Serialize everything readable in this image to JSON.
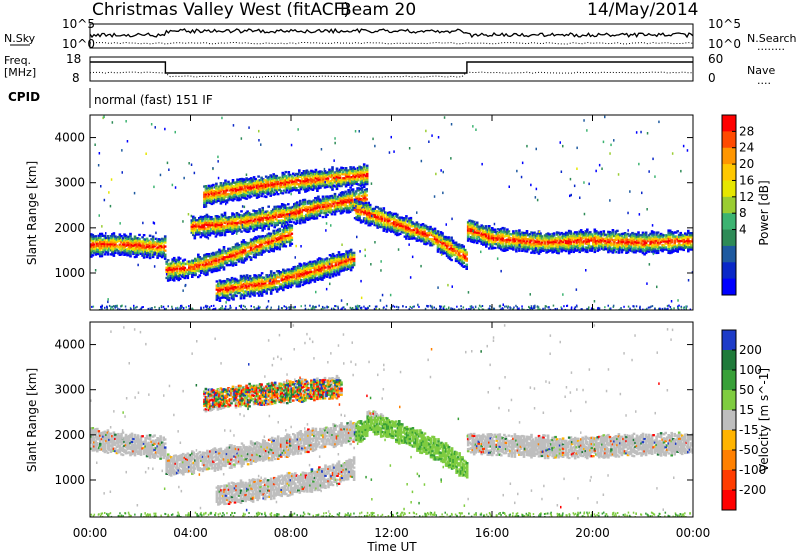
{
  "header": {
    "title": "Christmas Valley West (fitACF)",
    "beam": "Beam 20",
    "date": "14/May/2014"
  },
  "nsky_panel": {
    "left_label": "N.Sky",
    "left_ticks": [
      "10^5",
      "10^0"
    ],
    "right_ticks": [
      "10^5",
      "10^0"
    ],
    "right_label": "N.Search",
    "right_dots": "........"
  },
  "freq_panel": {
    "left_label_1": "Freq.",
    "left_label_2": "[MHz]",
    "left_ticks": [
      "18",
      "8"
    ],
    "right_ticks": [
      "60",
      "0"
    ],
    "right_label": "Nave",
    "right_dots": "....",
    "steps": [
      {
        "start": 0,
        "end": 3,
        "level": "high"
      },
      {
        "start": 3,
        "end": 15,
        "level": "low"
      },
      {
        "start": 15,
        "end": 24,
        "level": "high"
      }
    ]
  },
  "cpid": {
    "label": "CPID",
    "mode": "normal (fast) 151 IF"
  },
  "x_axis": {
    "label": "Time UT",
    "ticks": [
      "00:00",
      "04:00",
      "08:00",
      "12:00",
      "16:00",
      "20:00",
      "00:00"
    ]
  },
  "power_colorbar": {
    "label": "Power [dB]",
    "ticks": [
      "28",
      "24",
      "20",
      "16",
      "12",
      "8",
      "4"
    ],
    "colors": [
      "#ff0000",
      "#ff4a00",
      "#ff9600",
      "#ffc800",
      "#e6e600",
      "#9acd32",
      "#3cb371",
      "#2e8b57",
      "#1e5aa0",
      "#0a28c8",
      "#0000ff"
    ]
  },
  "velocity_colorbar": {
    "label": "Velocity [m s^-1]",
    "ticks": [
      "200",
      "100",
      "50",
      "15",
      "-15",
      "-50",
      "-100",
      "-200"
    ],
    "colors": [
      "#1e3cc8",
      "#1f7a3a",
      "#38a038",
      "#7fcc40",
      "#bebebe",
      "#ffb400",
      "#ff8000",
      "#ff3c00",
      "#ff0000"
    ]
  },
  "chart_data": [
    {
      "type": "heatmap",
      "panel": "power",
      "ylabel": "Slant Range [km]",
      "xlabel": "Time UT",
      "xlim": [
        0,
        24
      ],
      "ylim": [
        180,
        4500
      ],
      "yticks": [
        1000,
        2000,
        3000,
        4000
      ],
      "traces": [
        {
          "x": [
            0,
            1,
            2,
            3
          ],
          "y": [
            1600,
            1620,
            1580,
            1550
          ]
        },
        {
          "x": [
            3,
            4,
            5,
            6,
            7,
            8
          ],
          "y": [
            1050,
            1100,
            1250,
            1450,
            1650,
            1850
          ]
        },
        {
          "x": [
            4,
            6,
            8,
            10,
            11
          ],
          "y": [
            2000,
            2100,
            2300,
            2550,
            2650
          ]
        },
        {
          "x": [
            4.5,
            6,
            8,
            10,
            11
          ],
          "y": [
            2700,
            2850,
            3000,
            3100,
            3150
          ]
        },
        {
          "x": [
            5,
            7,
            9,
            10.5
          ],
          "y": [
            600,
            750,
            1050,
            1300
          ]
        },
        {
          "x": [
            10.5,
            12,
            13.5,
            15
          ],
          "y": [
            2400,
            2100,
            1800,
            1300
          ]
        },
        {
          "x": [
            15,
            16,
            18,
            20,
            22,
            24
          ],
          "y": [
            1950,
            1750,
            1650,
            1700,
            1650,
            1700
          ]
        }
      ]
    },
    {
      "type": "heatmap",
      "panel": "velocity",
      "ylabel": "Slant Range [km]",
      "xlabel": "Time UT",
      "xlim": [
        0,
        24
      ],
      "ylim": [
        180,
        4500
      ],
      "yticks": [
        1000,
        2000,
        3000,
        4000
      ],
      "traces": [
        {
          "x": [
            0,
            1,
            2,
            3
          ],
          "y": [
            1900,
            1800,
            1750,
            1700
          ]
        },
        {
          "x": [
            3,
            5,
            7,
            9,
            11
          ],
          "y": [
            1300,
            1450,
            1650,
            1900,
            2100
          ]
        },
        {
          "x": [
            4.5,
            6,
            8,
            10
          ],
          "y": [
            2750,
            2850,
            2950,
            3050
          ]
        },
        {
          "x": [
            5,
            7,
            9,
            10.5
          ],
          "y": [
            650,
            800,
            1000,
            1250
          ]
        },
        {
          "x": [
            11,
            12.5,
            14,
            15
          ],
          "y": [
            2300,
            2000,
            1600,
            1200
          ]
        },
        {
          "x": [
            15,
            17,
            19,
            21,
            24
          ],
          "y": [
            1800,
            1750,
            1700,
            1750,
            1800
          ]
        }
      ]
    }
  ]
}
